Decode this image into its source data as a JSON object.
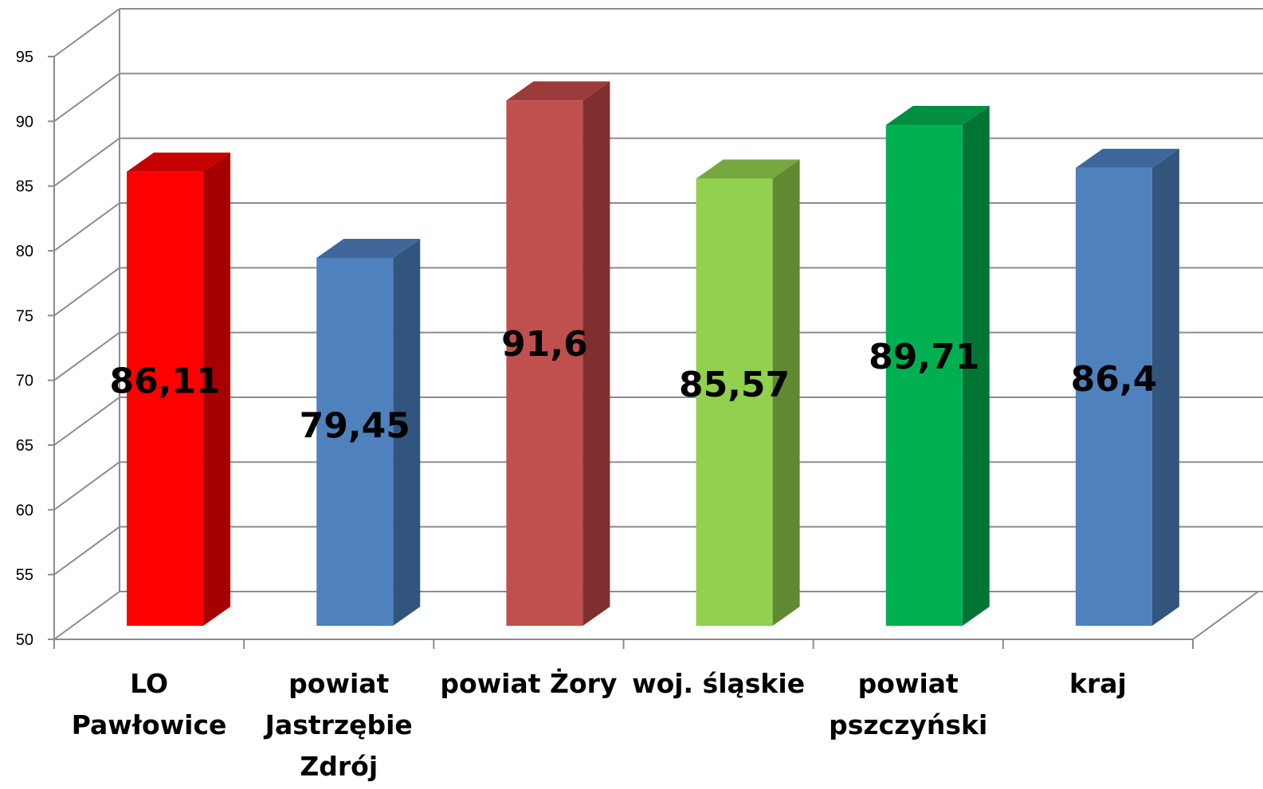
{
  "chart_data": {
    "type": "bar",
    "style": "3d-column",
    "categories": [
      [
        "LO",
        "Pawłowice"
      ],
      [
        "powiat",
        "Jastrzębie",
        "Zdrój"
      ],
      [
        "powiat Żory"
      ],
      [
        "woj. śląskie"
      ],
      [
        "powiat",
        "pszczyński"
      ],
      [
        "kraj"
      ]
    ],
    "values": [
      86.11,
      79.45,
      91.6,
      85.57,
      89.71,
      86.4
    ],
    "value_labels": [
      "86,11",
      "79,45",
      "91,6",
      "85,57",
      "89,71",
      "86,4"
    ],
    "colors": [
      {
        "front": "#ff0000",
        "side": "#a60000",
        "top": "#c40000"
      },
      {
        "front": "#4f81bd",
        "side": "#32557d",
        "top": "#3f6799"
      },
      {
        "front": "#c0504d",
        "side": "#7e2f2e",
        "top": "#9c3c3a"
      },
      {
        "front": "#92d050",
        "side": "#5f8a31",
        "top": "#76a83f"
      },
      {
        "front": "#00b050",
        "side": "#007533",
        "top": "#008f40"
      },
      {
        "front": "#4f81bd",
        "side": "#32557d",
        "top": "#3f6799"
      }
    ],
    "ylim": [
      50,
      95
    ],
    "yticks": [
      50,
      55,
      60,
      65,
      70,
      75,
      80,
      85,
      90,
      95
    ],
    "grid": true,
    "title": "",
    "xlabel": "",
    "ylabel": ""
  }
}
